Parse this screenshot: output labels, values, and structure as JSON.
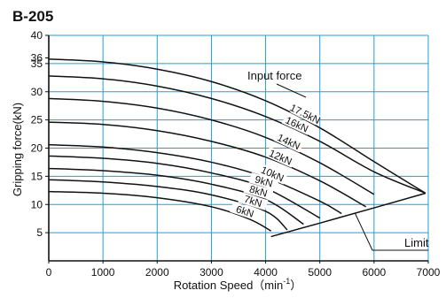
{
  "chart_data": {
    "type": "line",
    "title": "B-205",
    "xlabel": "Rotation Speed（min",
    "xlabel_sup": "-1",
    "xlabel_close": "）",
    "ylabel": "Gripping force(kN)",
    "xlim": [
      0,
      7000
    ],
    "ylim": [
      0,
      40
    ],
    "x_ticks": [
      0,
      1000,
      2000,
      3000,
      4000,
      5000,
      6000,
      7000
    ],
    "x_tick_labels": [
      "0",
      "1000",
      "2000",
      "3000",
      "4000",
      "5000",
      "6000",
      "7000"
    ],
    "y_ticks": [
      5,
      10,
      15,
      20,
      25,
      30,
      35,
      36,
      40
    ],
    "y_tick_labels": [
      "5",
      "10",
      "15",
      "20",
      "25",
      "30",
      "35",
      "36",
      "40"
    ],
    "grid": true,
    "grid_color": "#1e9fdc",
    "line_color": "#111111",
    "annotations": {
      "input_force": "Input  force",
      "limit": "Limit"
    },
    "series": [
      {
        "name": "17.5kN",
        "x": [
          0,
          1000,
          2000,
          3000,
          4000,
          5000,
          6000,
          6950
        ],
        "y": [
          35.8,
          35.3,
          34.0,
          31.8,
          28.4,
          23.6,
          17.6,
          12.0
        ]
      },
      {
        "name": "16kN",
        "x": [
          0,
          1000,
          2000,
          3000,
          4000,
          5000,
          6000,
          6950
        ],
        "y": [
          32.8,
          32.3,
          31.0,
          28.8,
          25.6,
          21.2,
          15.8,
          12.0
        ]
      },
      {
        "name": "14kN",
        "x": [
          0,
          1000,
          2000,
          3000,
          4000,
          5000,
          6000
        ],
        "y": [
          28.8,
          28.3,
          27.1,
          25.0,
          21.9,
          17.4,
          11.8
        ]
      },
      {
        "name": "12kN",
        "x": [
          0,
          1000,
          2000,
          3000,
          4000,
          5000,
          5850
        ],
        "y": [
          24.6,
          24.2,
          23.1,
          21.2,
          18.4,
          14.2,
          9.6
        ]
      },
      {
        "name": "10kN",
        "x": [
          0,
          1000,
          2000,
          3000,
          4000,
          5000,
          5400
        ],
        "y": [
          20.6,
          20.2,
          19.2,
          17.5,
          14.8,
          10.6,
          8.4
        ]
      },
      {
        "name": "9kN",
        "x": [
          0,
          1000,
          2000,
          3000,
          4000,
          5000
        ],
        "y": [
          18.6,
          18.2,
          17.3,
          15.6,
          12.9,
          7.6
        ]
      },
      {
        "name": "8kN",
        "x": [
          0,
          1000,
          2000,
          3000,
          4000,
          4700
        ],
        "y": [
          16.4,
          16.0,
          15.2,
          13.6,
          10.9,
          6.5
        ]
      },
      {
        "name": "7kN",
        "x": [
          0,
          1000,
          2000,
          3000,
          4000,
          4400
        ],
        "y": [
          14.4,
          14.0,
          13.2,
          11.7,
          8.8,
          5.5
        ]
      },
      {
        "name": "6kN",
        "x": [
          0,
          1000,
          2000,
          3000,
          3700,
          4100
        ],
        "y": [
          12.3,
          12.0,
          11.2,
          9.6,
          7.4,
          5.3
        ]
      }
    ],
    "limit_line": {
      "x": [
        4100,
        5000,
        6000,
        6950
      ],
      "y": [
        4.3,
        6.7,
        9.4,
        12.0
      ]
    }
  }
}
